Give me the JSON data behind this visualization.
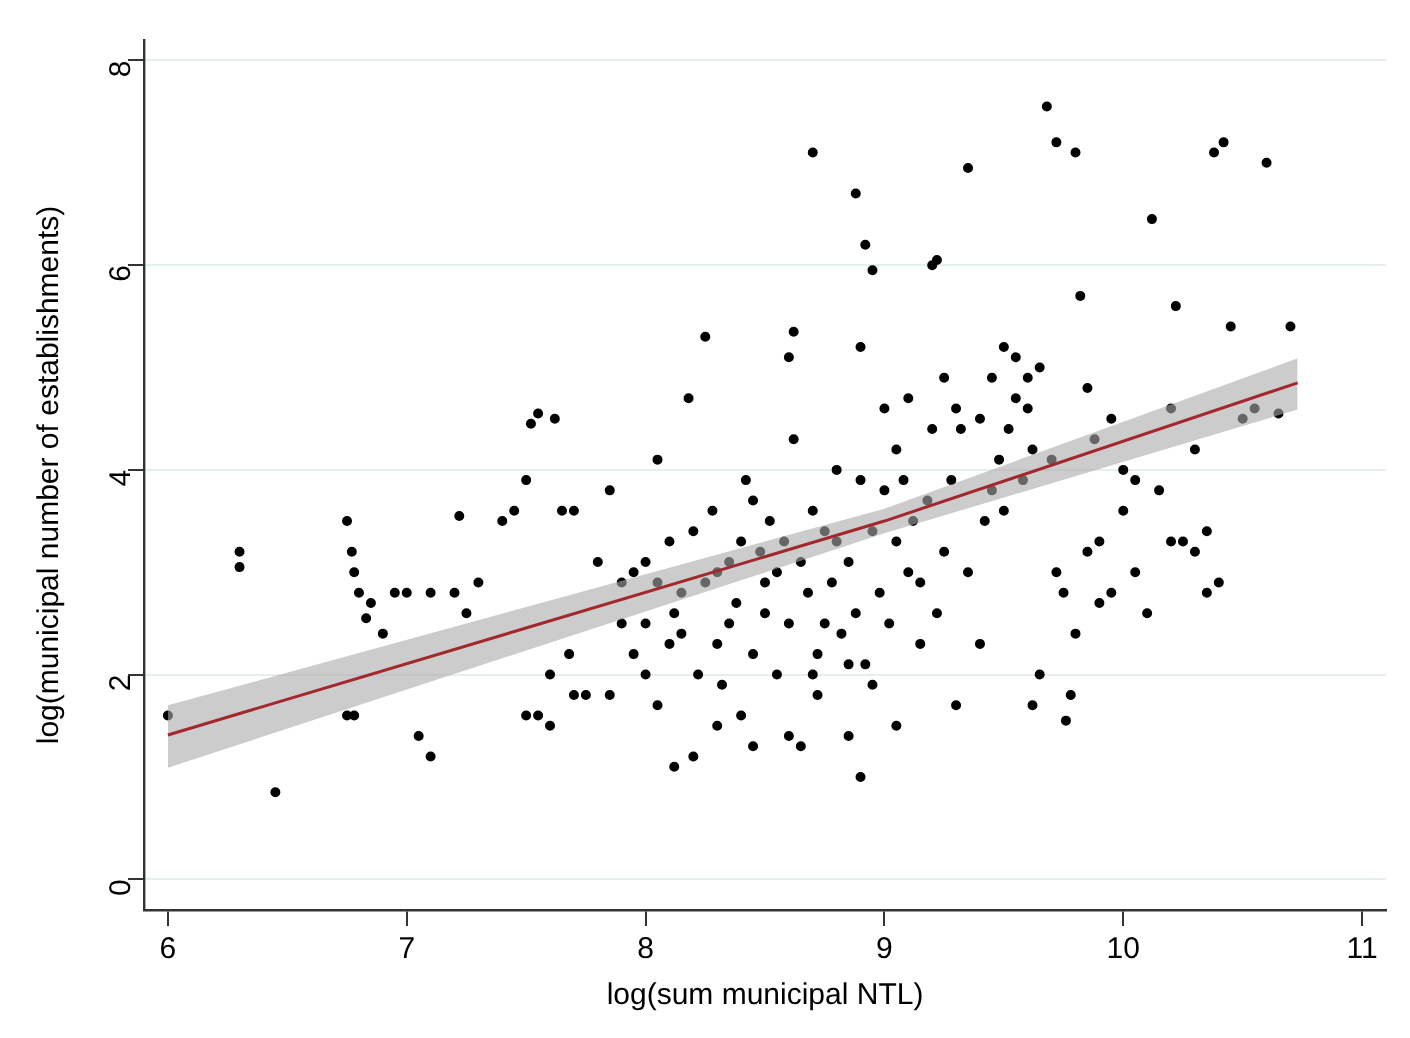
{
  "chart_data": {
    "type": "scatter",
    "xlabel": "log(sum municipal NTL)",
    "ylabel": "log(municipal number of establishments)",
    "xlim": [
      5.9,
      11.1
    ],
    "ylim": [
      -0.3,
      8.2
    ],
    "xticks": [
      6,
      7,
      8,
      9,
      10,
      11
    ],
    "yticks": [
      0,
      2,
      4,
      6,
      8
    ],
    "grid": "y",
    "series": [
      {
        "type": "scatter",
        "marker": "circle",
        "color": "#000000",
        "x": [
          6.0,
          6.3,
          6.3,
          6.45,
          6.75,
          6.77,
          6.78,
          6.8,
          6.85,
          6.83,
          6.75,
          6.78,
          6.9,
          6.95,
          7.0,
          7.05,
          7.1,
          7.1,
          7.2,
          7.22,
          7.25,
          7.3,
          7.4,
          7.45,
          7.5,
          7.52,
          7.55,
          7.5,
          7.55,
          7.6,
          7.62,
          7.65,
          7.7,
          7.6,
          7.68,
          7.7,
          7.75,
          7.8,
          7.85,
          7.9,
          7.95,
          8.0,
          8.05,
          8.1,
          8.15,
          8.12,
          8.2,
          8.18,
          8.25,
          8.3,
          8.35,
          8.4,
          8.45,
          8.5,
          8.55,
          8.6,
          8.62,
          8.65,
          8.7,
          8.72,
          8.75,
          8.8,
          8.85,
          8.9,
          8.88,
          8.92,
          8.95,
          8.9,
          9.0,
          9.05,
          9.1,
          9.15,
          9.2,
          9.22,
          9.25,
          9.3,
          9.32,
          9.35,
          9.4,
          9.45,
          9.5,
          9.55,
          9.6,
          9.62,
          9.65,
          9.68,
          9.72,
          9.75,
          9.76,
          9.78,
          9.8,
          9.82,
          9.85,
          9.9,
          9.95,
          10.0,
          10.05,
          10.1,
          10.12,
          10.2,
          10.22,
          10.25,
          10.3,
          10.35,
          10.38,
          10.42,
          10.45,
          10.6,
          10.65,
          10.7,
          10.5,
          10.55,
          7.9,
          7.95,
          8.0,
          8.05,
          8.1,
          8.12,
          8.15,
          8.2,
          8.22,
          8.25,
          8.28,
          8.3,
          8.32,
          8.35,
          8.38,
          8.4,
          8.42,
          8.45,
          8.48,
          8.5,
          8.52,
          8.55,
          8.58,
          8.6,
          8.62,
          8.65,
          8.68,
          8.7,
          8.72,
          8.75,
          8.78,
          8.8,
          8.82,
          8.85,
          8.88,
          8.9,
          8.92,
          8.95,
          8.98,
          9.0,
          9.02,
          9.05,
          9.08,
          9.1,
          9.12,
          9.15,
          9.18,
          9.2,
          9.22,
          9.25,
          9.28,
          9.3,
          9.35,
          9.4,
          9.42,
          9.45,
          9.48,
          9.5,
          9.52,
          9.55,
          9.58,
          9.6,
          9.62,
          9.65,
          9.7,
          9.72,
          9.8,
          9.85,
          9.88,
          9.9,
          9.95,
          10.0,
          10.05,
          10.15,
          10.2,
          10.3,
          10.35,
          10.4,
          7.85,
          8.0,
          8.05,
          8.3,
          8.45,
          8.6,
          8.7,
          8.85,
          8.95,
          9.05
        ],
        "values": [
          1.6,
          3.2,
          3.05,
          0.85,
          3.5,
          3.2,
          3.0,
          2.8,
          2.7,
          2.55,
          1.6,
          1.6,
          2.4,
          2.8,
          2.8,
          1.4,
          1.2,
          2.8,
          2.8,
          3.55,
          2.6,
          2.9,
          3.5,
          3.6,
          3.9,
          4.45,
          4.55,
          1.6,
          1.6,
          1.5,
          4.5,
          3.6,
          3.6,
          2.0,
          2.2,
          1.8,
          1.8,
          3.1,
          3.8,
          2.5,
          2.2,
          3.1,
          4.1,
          2.3,
          2.8,
          1.1,
          1.2,
          4.7,
          5.3,
          3.0,
          2.5,
          3.3,
          3.7,
          2.6,
          3.0,
          5.1,
          5.35,
          1.3,
          7.1,
          2.2,
          2.5,
          3.3,
          1.4,
          1.0,
          6.7,
          6.2,
          5.95,
          5.2,
          3.8,
          4.2,
          3.0,
          2.3,
          6.0,
          6.05,
          4.9,
          1.7,
          4.4,
          6.95,
          2.3,
          3.8,
          5.2,
          4.7,
          4.9,
          1.7,
          2.0,
          7.55,
          7.2,
          2.8,
          1.55,
          1.8,
          7.1,
          5.7,
          4.8,
          3.3,
          2.8,
          4.0,
          3.0,
          2.6,
          6.45,
          4.6,
          5.6,
          3.3,
          3.2,
          2.8,
          7.1,
          7.2,
          5.4,
          7.0,
          4.55,
          5.4,
          4.5,
          4.6,
          2.9,
          3.0,
          2.5,
          2.9,
          3.3,
          2.6,
          2.4,
          3.4,
          2.0,
          2.9,
          3.6,
          2.3,
          1.9,
          3.1,
          2.7,
          1.6,
          3.9,
          2.2,
          3.2,
          2.9,
          3.5,
          2.0,
          3.3,
          2.5,
          4.3,
          3.1,
          2.8,
          3.6,
          1.8,
          3.4,
          2.9,
          4.0,
          2.4,
          3.1,
          2.6,
          3.9,
          2.1,
          3.4,
          2.8,
          4.6,
          2.5,
          3.3,
          3.9,
          4.7,
          3.5,
          2.9,
          3.7,
          4.4,
          2.6,
          3.2,
          3.9,
          4.6,
          3.0,
          4.5,
          3.5,
          4.9,
          4.1,
          3.6,
          4.4,
          5.1,
          3.9,
          4.6,
          4.2,
          5.0,
          4.1,
          3.0,
          2.4,
          3.2,
          4.3,
          2.7,
          4.5,
          3.6,
          3.9,
          3.8,
          3.3,
          4.2,
          3.4,
          2.9,
          1.8,
          2.0,
          1.7,
          1.5,
          1.3,
          1.4,
          2.0,
          2.1,
          1.9,
          1.5
        ]
      },
      {
        "type": "line",
        "marker": "none",
        "color": "#a3282d",
        "x": [
          6,
          9,
          10.73
        ],
        "values": [
          1.41,
          3.5,
          4.85
        ],
        "lower": [
          1.09,
          3.38,
          4.59
        ],
        "upper": [
          1.7,
          3.62,
          5.09
        ]
      }
    ]
  }
}
